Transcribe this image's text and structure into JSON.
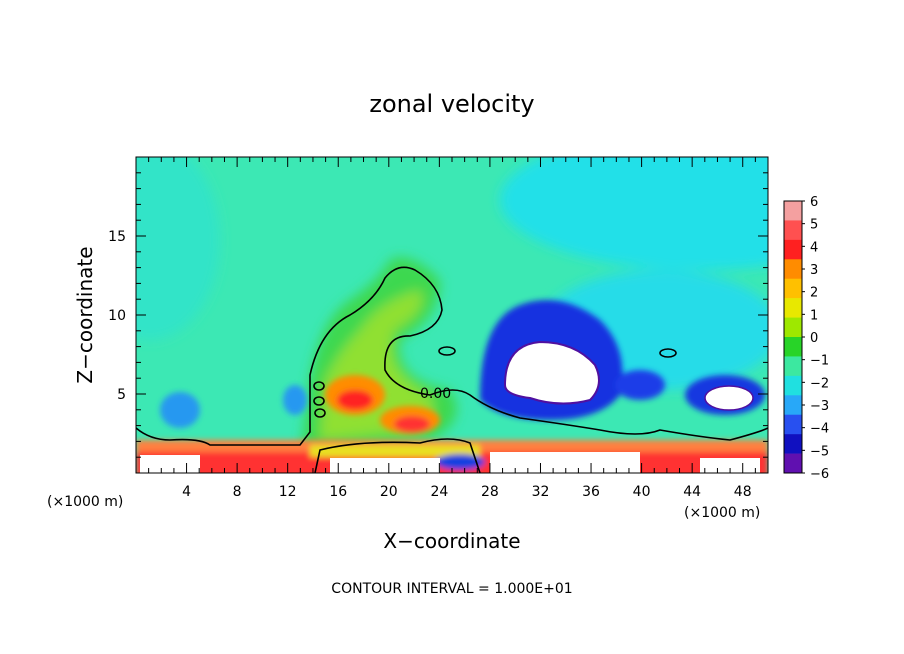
{
  "chart_data": {
    "type": "heatmap",
    "title": "zonal velocity",
    "xlabel": "X−coordinate",
    "ylabel": "Z−coordinate",
    "x_unit": "(×1000 m)",
    "x_unit_right": "(×1000 m)",
    "xlim": [
      0,
      50
    ],
    "ylim": [
      0,
      20
    ],
    "x_ticks": [
      4,
      8,
      12,
      16,
      20,
      24,
      28,
      32,
      36,
      40,
      44,
      48
    ],
    "y_ticks": [
      5,
      10,
      15
    ],
    "contour_label": "0.00",
    "footer": "CONTOUR INTERVAL = 1.000E+01",
    "colorbar": {
      "levels": [
        6,
        5,
        4,
        3,
        2,
        1,
        0,
        -1,
        -2,
        -3,
        -4,
        -5,
        -6
      ],
      "labels": [
        "6",
        "5",
        "4",
        "3",
        "2",
        "1",
        "0",
        "−1",
        "−2",
        "−3",
        "−4",
        "−5",
        "−6"
      ],
      "colors": [
        "#f4a0a0",
        "#ff5050",
        "#ff2020",
        "#ff8c00",
        "#ffc000",
        "#e8e800",
        "#9ee800",
        "#28d428",
        "#3ce8a0",
        "#20e0e0",
        "#28a8f8",
        "#2850f0",
        "#1010c0",
        "#6010b0"
      ]
    },
    "background_color": "#3ce8b4"
  }
}
